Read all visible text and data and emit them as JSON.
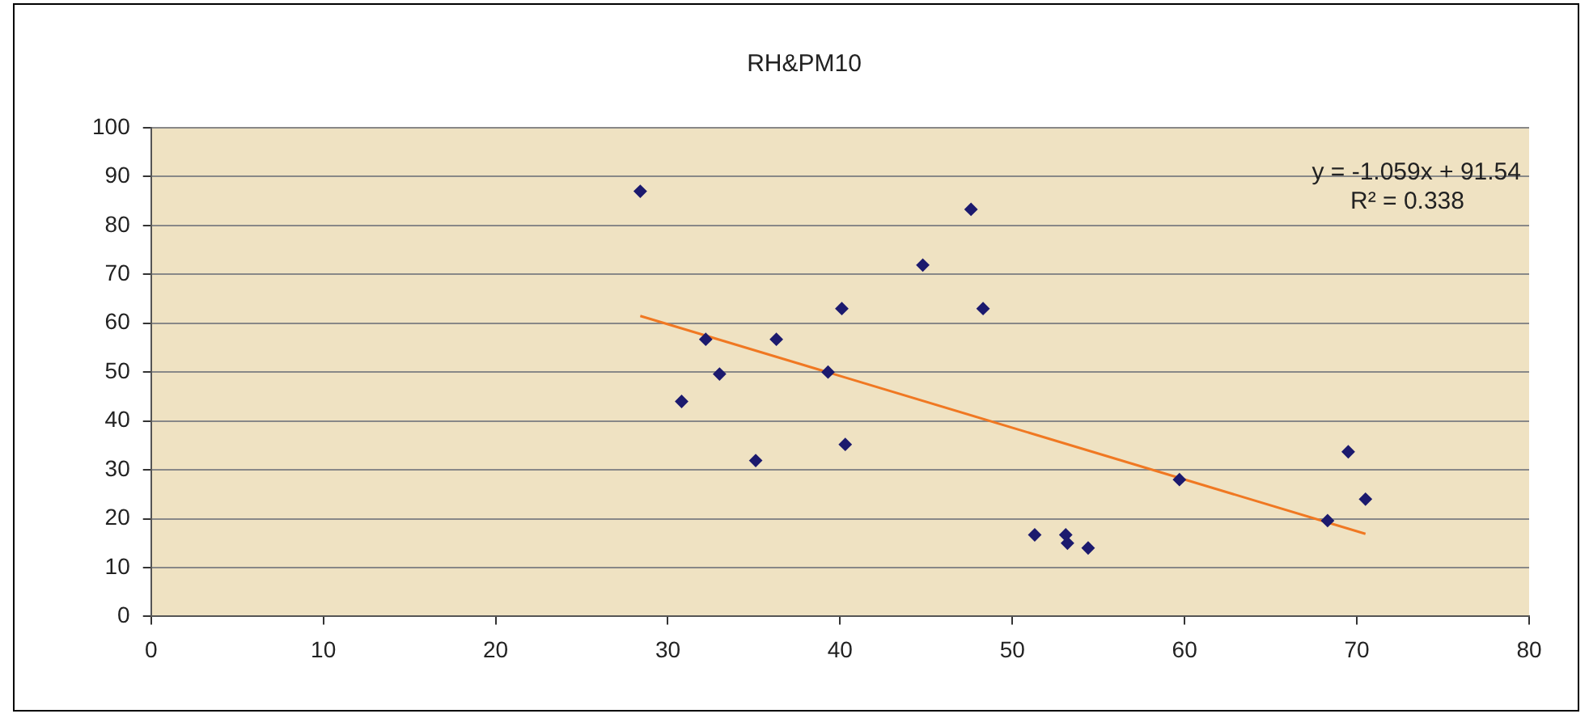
{
  "chart_data": {
    "type": "scatter",
    "title": "RH&PM10",
    "series": [
      {
        "color": "#1c1a6e",
        "marker": "diamond",
        "x": [
          28.4,
          32.2,
          33.0,
          30.8,
          36.3,
          39.3,
          40.1,
          40.3,
          35.1,
          44.8,
          47.6,
          48.3,
          51.3,
          53.1,
          53.2,
          54.4,
          59.7,
          68.3,
          69.5,
          70.5
        ],
        "values": [
          87,
          56.7,
          49.6,
          44,
          56.7,
          50,
          63,
          35.2,
          31.9,
          71.9,
          83.3,
          63,
          16.7,
          16.7,
          15,
          14,
          28,
          19.6,
          33.7,
          24
        ]
      },
      {
        "type": "line",
        "color": "#f07822",
        "marker": "none",
        "x": [
          28.4,
          70.5
        ],
        "values": [
          61.5,
          16.9
        ]
      }
    ],
    "xlim": [
      0,
      80
    ],
    "xticks": [
      0,
      10,
      20,
      30,
      40,
      50,
      60,
      70,
      80
    ],
    "ylim": [
      0,
      100
    ],
    "yticks": [
      0,
      10,
      20,
      30,
      40,
      50,
      60,
      70,
      80,
      90,
      100
    ],
    "grid": "y",
    "legend": false,
    "annotations": [
      "y = -1.059x + 91.54",
      "R² = 0.338"
    ]
  }
}
